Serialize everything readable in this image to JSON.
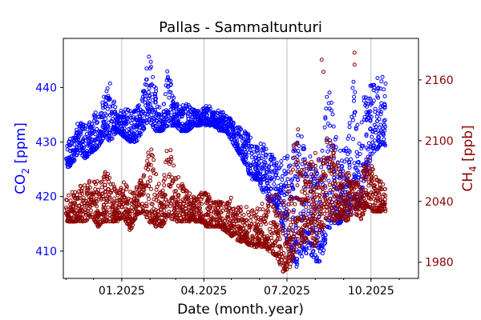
{
  "chart_data": {
    "type": "scatter",
    "title": "Pallas - Sammaltunturi",
    "xlabel": "Date (month.year)",
    "ylabel_left": {
      "main": "CO",
      "sub": "2",
      "unit": " [ppm]"
    },
    "ylabel_right": {
      "main": "CH",
      "sub": "4",
      "unit": " [ppb]"
    },
    "x_range": [
      "2024-10-29",
      "2025-11-22"
    ],
    "x_major_ticks": [
      {
        "date": "2025-01-01",
        "label": "01.2025"
      },
      {
        "date": "2025-04-01",
        "label": "04.2025"
      },
      {
        "date": "2025-07-01",
        "label": "07.2025"
      },
      {
        "date": "2025-10-01",
        "label": "10.2025"
      }
    ],
    "x_minor_ticks_monthly_from": "2024-11-01",
    "grid": "vertical at major x ticks",
    "ylim_left": [
      405,
      449
    ],
    "ylim_right": [
      1964,
      2201
    ],
    "yticks_left": [
      410,
      420,
      430,
      440
    ],
    "yticks_right": [
      1980,
      2040,
      2100,
      2160
    ],
    "colors": {
      "co2": "#0000ff",
      "ch4": "#8b0000",
      "grid": "#b0b0b0"
    },
    "series_start": "2024-11-01",
    "series_step_days": 7,
    "series": [
      {
        "name": "CO2 [ppm]",
        "axis": "left",
        "weekly_ranges": [
          [
            425,
            430
          ],
          [
            426,
            431
          ],
          [
            428,
            434
          ],
          [
            427,
            433
          ],
          [
            428,
            435
          ],
          [
            429,
            436
          ],
          [
            431,
            439
          ],
          [
            430,
            441
          ],
          [
            432,
            435
          ],
          [
            431,
            437
          ],
          [
            430,
            437
          ],
          [
            430,
            436
          ],
          [
            432,
            440
          ],
          [
            434,
            447
          ],
          [
            432,
            441
          ],
          [
            432,
            434
          ],
          [
            433,
            445
          ],
          [
            433,
            438
          ],
          [
            432,
            437
          ],
          [
            432,
            437
          ],
          [
            433,
            436
          ],
          [
            433,
            436
          ],
          [
            433,
            437
          ],
          [
            433,
            436
          ],
          [
            432,
            436
          ],
          [
            432,
            435
          ],
          [
            430,
            434
          ],
          [
            428,
            433
          ],
          [
            426,
            432
          ],
          [
            423,
            431
          ],
          [
            423,
            430
          ],
          [
            420,
            430
          ],
          [
            419,
            428
          ],
          [
            418,
            427
          ],
          [
            414,
            427
          ],
          [
            410,
            428
          ],
          [
            407,
            432
          ],
          [
            409,
            431
          ],
          [
            410,
            429
          ],
          [
            408,
            426
          ],
          [
            408,
            428
          ],
          [
            414,
            441
          ],
          [
            415,
            434
          ],
          [
            415,
            428
          ],
          [
            416,
            430
          ],
          [
            418,
            444
          ],
          [
            418,
            430
          ],
          [
            424,
            444
          ],
          [
            428,
            441
          ],
          [
            429,
            442
          ]
        ]
      },
      {
        "name": "CH4 [ppb]",
        "axis": "right",
        "weekly_ranges": [
          [
            2020,
            2045
          ],
          [
            2020,
            2050
          ],
          [
            2020,
            2055
          ],
          [
            2020,
            2060
          ],
          [
            2025,
            2065
          ],
          [
            2015,
            2060
          ],
          [
            2020,
            2070
          ],
          [
            2020,
            2065
          ],
          [
            2020,
            2050
          ],
          [
            2025,
            2060
          ],
          [
            2010,
            2050
          ],
          [
            2025,
            2055
          ],
          [
            2030,
            2065
          ],
          [
            2020,
            2100
          ],
          [
            2015,
            2075
          ],
          [
            2015,
            2045
          ],
          [
            2025,
            2110
          ],
          [
            2020,
            2070
          ],
          [
            2020,
            2060
          ],
          [
            2020,
            2050
          ],
          [
            2020,
            2045
          ],
          [
            2020,
            2050
          ],
          [
            2015,
            2050
          ],
          [
            2015,
            2040
          ],
          [
            2015,
            2040
          ],
          [
            2010,
            2040
          ],
          [
            2005,
            2045
          ],
          [
            2000,
            2035
          ],
          [
            2000,
            2035
          ],
          [
            1995,
            2035
          ],
          [
            1995,
            2035
          ],
          [
            1995,
            2040
          ],
          [
            1990,
            2050
          ],
          [
            1985,
            2050
          ],
          [
            1970,
            2040
          ],
          [
            1975,
            2060
          ],
          [
            1990,
            2120
          ],
          [
            2000,
            2090
          ],
          [
            2000,
            2080
          ],
          [
            1995,
            2090
          ],
          [
            2010,
            2075
          ],
          [
            2025,
            2110
          ],
          [
            2020,
            2090
          ],
          [
            2025,
            2070
          ],
          [
            2020,
            2070
          ],
          [
            2030,
            2060
          ],
          [
            2020,
            2060
          ],
          [
            2035,
            2085
          ],
          [
            2030,
            2075
          ],
          [
            2030,
            2060
          ]
        ],
        "outliers": [
          [
            "2025-08-08",
            2180
          ],
          [
            "2025-08-10",
            2168
          ],
          [
            "2025-09-13",
            2187
          ],
          [
            "2025-09-13",
            2175
          ]
        ]
      }
    ]
  }
}
